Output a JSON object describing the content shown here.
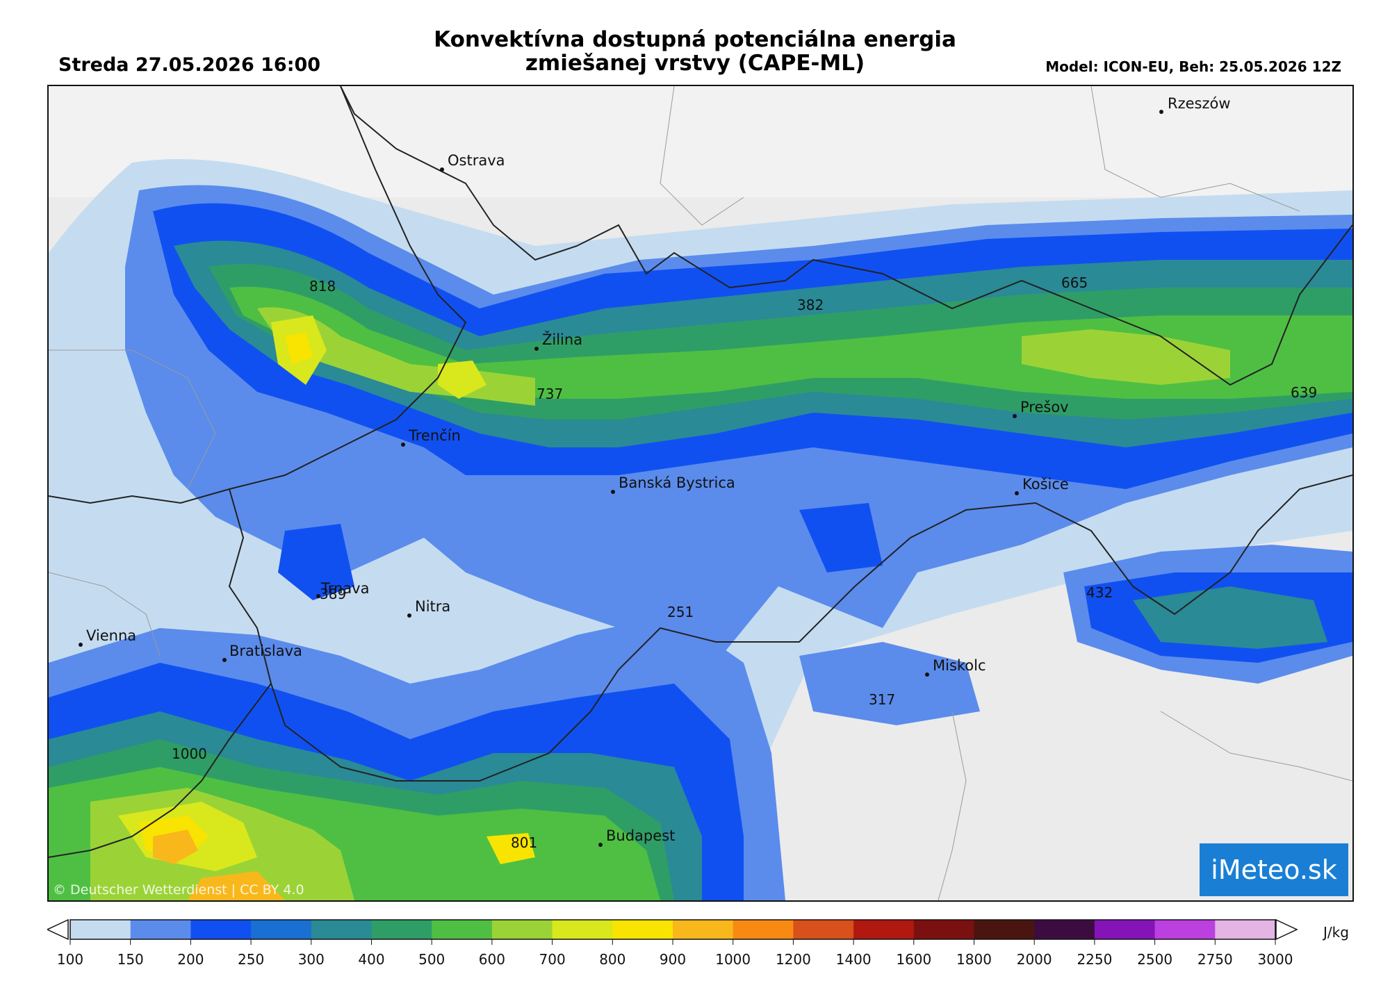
{
  "header": {
    "title_line1": "Konvektívna dostupná potenciálna energia",
    "title_line2": "zmiešanej vrstvy (CAPE-ML)",
    "datetime": "Streda 27.05.2026 16:00",
    "model": "Model: ICON-EU, Beh: 25.05.2026 12Z"
  },
  "map": {
    "cities": [
      {
        "name": "Rzeszów"
      },
      {
        "name": "Ostrava"
      },
      {
        "name": "Žilina"
      },
      {
        "name": "Trenčín"
      },
      {
        "name": "Prešov"
      },
      {
        "name": "Košice"
      },
      {
        "name": "Banská Bystrica"
      },
      {
        "name": "Nitra"
      },
      {
        "name": "Trnava"
      },
      {
        "name": "Vienna"
      },
      {
        "name": "Bratislava"
      },
      {
        "name": "Miskolc"
      },
      {
        "name": "Budapest"
      }
    ],
    "values": [
      "818",
      "737",
      "382",
      "665",
      "639",
      "432",
      "389",
      "251",
      "317",
      "1000",
      "801"
    ],
    "copyright": "© Deutscher Wetterdienst | CC BY 4.0",
    "logo": "iMeteo.sk"
  },
  "legend": {
    "unit": "J/kg",
    "ticks": [
      "100",
      "150",
      "200",
      "250",
      "300",
      "400",
      "500",
      "600",
      "700",
      "800",
      "900",
      "1000",
      "1200",
      "1400",
      "1600",
      "1800",
      "2000",
      "2250",
      "2500",
      "2750",
      "3000"
    ],
    "colors": [
      "#c5dcf0",
      "#5b8cec",
      "#1150f0",
      "#1a6fd2",
      "#2a8a96",
      "#2f9e66",
      "#4fbf43",
      "#9bd337",
      "#d9e81c",
      "#f8e400",
      "#f8b81c",
      "#f88a14",
      "#d8501a",
      "#b01810",
      "#7a1010",
      "#4a1410",
      "#3c0c40",
      "#8414b8",
      "#bc40e0",
      "#e4b4e4"
    ]
  }
}
